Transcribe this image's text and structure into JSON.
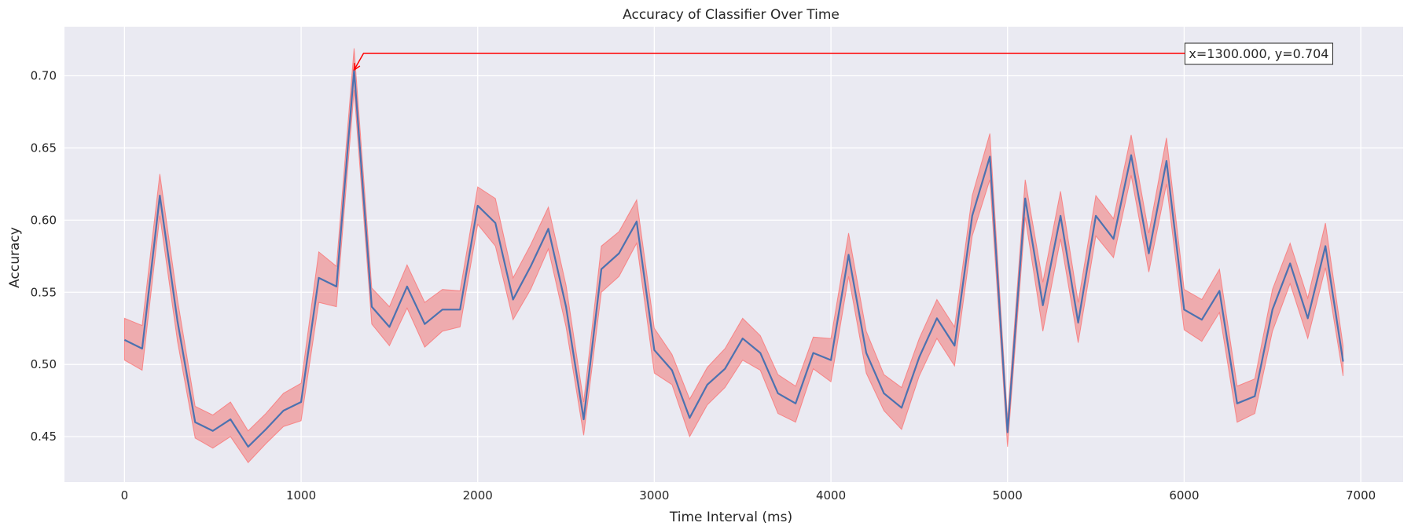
{
  "chart_data": {
    "type": "line",
    "title": "Accuracy of Classifier Over Time",
    "xlabel": "Time Interval (ms)",
    "ylabel": "Accuracy",
    "xlim": [
      -340,
      7240
    ],
    "ylim": [
      0.4185,
      0.734
    ],
    "grid": true,
    "xticks": [
      0,
      1000,
      2000,
      3000,
      4000,
      5000,
      6000,
      7000
    ],
    "yticks": [
      0.45,
      0.5,
      0.55,
      0.6,
      0.65,
      0.7
    ],
    "xtick_labels": [
      "0",
      "1000",
      "2000",
      "3000",
      "4000",
      "5000",
      "6000",
      "7000"
    ],
    "ytick_labels": [
      "0.45",
      "0.50",
      "0.55",
      "0.60",
      "0.65",
      "0.70"
    ],
    "series": [
      {
        "line_color": "#4c72b0",
        "band_color": "#f08080",
        "x": [
          0,
          100,
          200,
          300,
          400,
          500,
          600,
          700,
          800,
          900,
          1000,
          1100,
          1200,
          1300,
          1400,
          1500,
          1600,
          1700,
          1800,
          1900,
          2000,
          2100,
          2200,
          2300,
          2400,
          2500,
          2600,
          2700,
          2800,
          2900,
          3000,
          3100,
          3200,
          3300,
          3400,
          3500,
          3600,
          3700,
          3800,
          3900,
          4000,
          4100,
          4200,
          4300,
          4400,
          4500,
          4600,
          4700,
          4800,
          4900,
          5000,
          5100,
          5200,
          5300,
          5400,
          5500,
          5600,
          5700,
          5800,
          5900,
          6000,
          6100,
          6200,
          6300,
          6400,
          6500,
          6600,
          6700,
          6800,
          6900
        ],
        "y": [
          0.517,
          0.511,
          0.617,
          0.53,
          0.46,
          0.454,
          0.462,
          0.443,
          0.455,
          0.468,
          0.474,
          0.56,
          0.554,
          0.704,
          0.54,
          0.526,
          0.554,
          0.528,
          0.538,
          0.538,
          0.61,
          0.598,
          0.545,
          0.568,
          0.594,
          0.54,
          0.462,
          0.566,
          0.577,
          0.599,
          0.51,
          0.496,
          0.463,
          0.486,
          0.497,
          0.518,
          0.508,
          0.48,
          0.473,
          0.508,
          0.503,
          0.576,
          0.508,
          0.48,
          0.47,
          0.505,
          0.532,
          0.513,
          0.603,
          0.644,
          0.453,
          0.615,
          0.541,
          0.603,
          0.529,
          0.603,
          0.587,
          0.645,
          0.577,
          0.641,
          0.538,
          0.531,
          0.551,
          0.473,
          0.478,
          0.538,
          0.57,
          0.532,
          0.582,
          0.502
        ],
        "y_lower": [
          0.503,
          0.496,
          0.603,
          0.516,
          0.449,
          0.442,
          0.45,
          0.432,
          0.445,
          0.457,
          0.461,
          0.543,
          0.54,
          0.69,
          0.528,
          0.513,
          0.539,
          0.512,
          0.523,
          0.526,
          0.597,
          0.582,
          0.531,
          0.552,
          0.58,
          0.526,
          0.451,
          0.55,
          0.561,
          0.584,
          0.494,
          0.486,
          0.45,
          0.472,
          0.484,
          0.503,
          0.496,
          0.466,
          0.46,
          0.497,
          0.488,
          0.561,
          0.494,
          0.468,
          0.455,
          0.492,
          0.518,
          0.499,
          0.589,
          0.628,
          0.443,
          0.602,
          0.523,
          0.587,
          0.515,
          0.589,
          0.574,
          0.631,
          0.564,
          0.625,
          0.524,
          0.516,
          0.536,
          0.46,
          0.466,
          0.523,
          0.556,
          0.518,
          0.567,
          0.492
        ],
        "y_upper": [
          0.532,
          0.527,
          0.632,
          0.545,
          0.471,
          0.465,
          0.474,
          0.454,
          0.466,
          0.48,
          0.487,
          0.578,
          0.568,
          0.719,
          0.553,
          0.54,
          0.569,
          0.543,
          0.552,
          0.551,
          0.623,
          0.615,
          0.56,
          0.583,
          0.609,
          0.555,
          0.474,
          0.582,
          0.592,
          0.614,
          0.525,
          0.507,
          0.476,
          0.498,
          0.511,
          0.532,
          0.52,
          0.493,
          0.485,
          0.519,
          0.518,
          0.591,
          0.523,
          0.493,
          0.484,
          0.518,
          0.545,
          0.526,
          0.617,
          0.66,
          0.462,
          0.628,
          0.557,
          0.62,
          0.543,
          0.617,
          0.601,
          0.659,
          0.591,
          0.657,
          0.552,
          0.545,
          0.566,
          0.485,
          0.49,
          0.552,
          0.584,
          0.546,
          0.598,
          0.513
        ]
      }
    ],
    "annotation": {
      "text": "x=1300.000, y=0.704",
      "target_x": 1300,
      "target_y": 0.704,
      "text_anchor_x": 6000,
      "text_anchor_y": 0.7155,
      "arrow_color": "#ff0000"
    },
    "background_color": "#eaeaf2",
    "grid_color": "#ffffff"
  }
}
